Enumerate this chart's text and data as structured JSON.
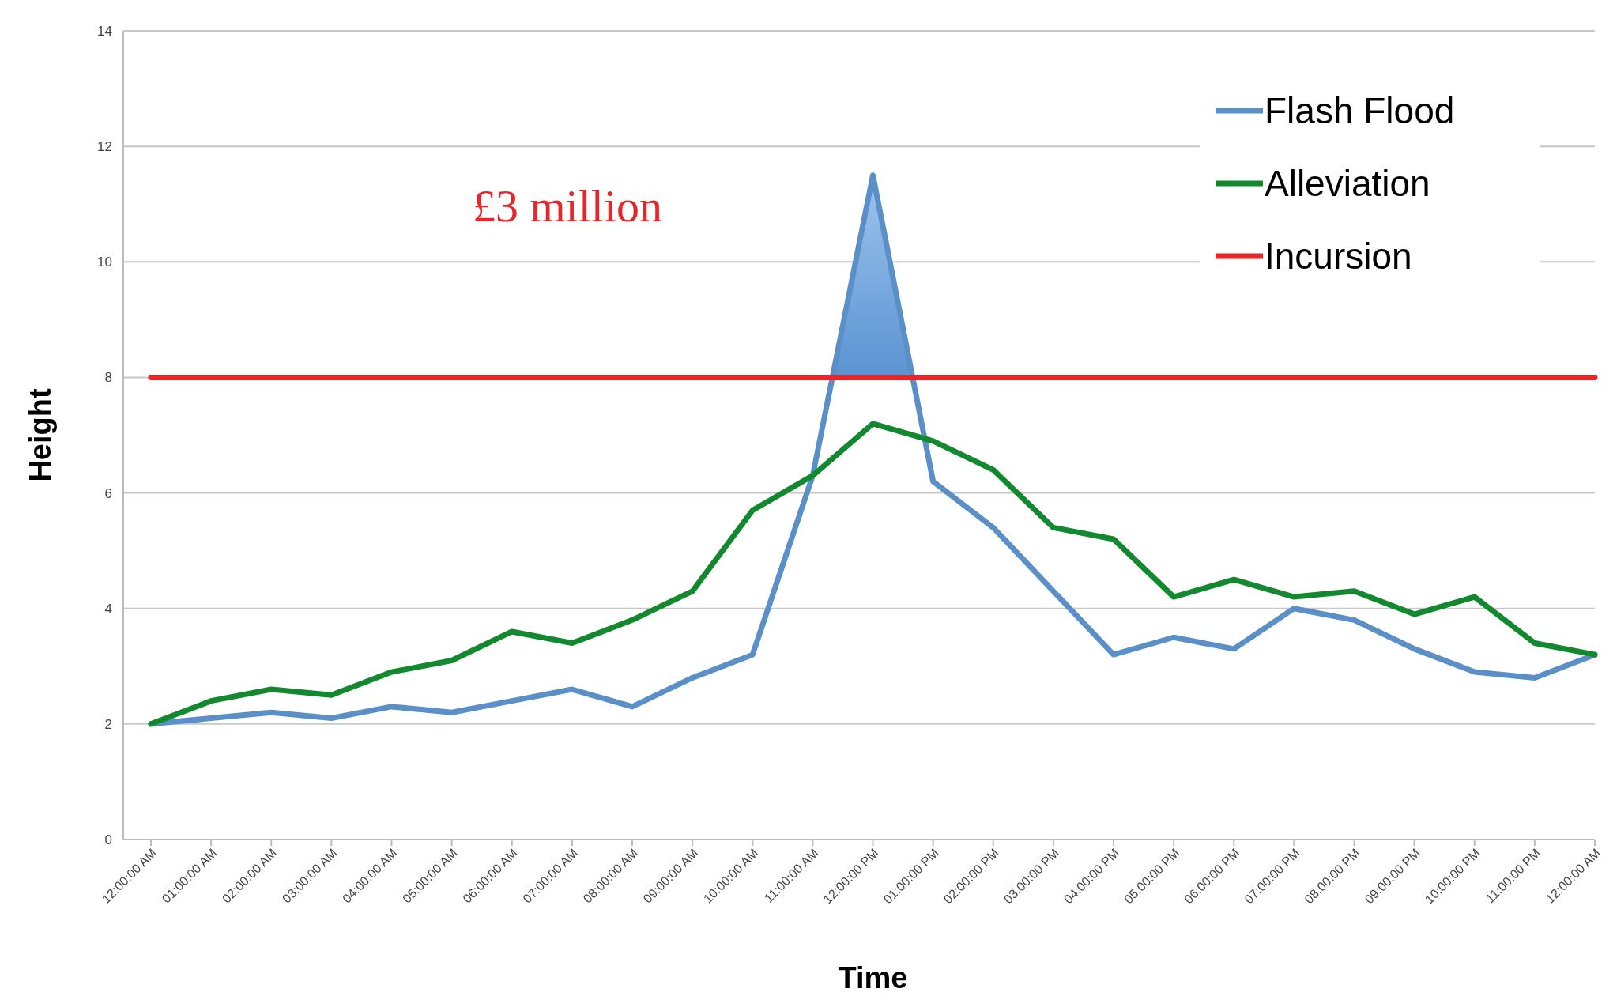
{
  "chart_data": {
    "type": "line",
    "xlabel": "Time",
    "ylabel": "Height",
    "categories": [
      "12:00:00 AM",
      "01:00:00 AM",
      "02:00:00 AM",
      "03:00:00 AM",
      "04:00:00 AM",
      "05:00:00 AM",
      "06:00:00 AM",
      "07:00:00 AM",
      "08:00:00 AM",
      "09:00:00 AM",
      "10:00:00 AM",
      "11:00:00 AM",
      "12:00:00 PM",
      "01:00:00 PM",
      "02:00:00 PM",
      "03:00:00 PM",
      "04:00:00 PM",
      "05:00:00 PM",
      "06:00:00 PM",
      "07:00:00 PM",
      "08:00:00 PM",
      "09:00:00 PM",
      "10:00:00 PM",
      "11:00:00 PM",
      "12:00:00 AM"
    ],
    "series": [
      {
        "name": "Flash Flood",
        "color": "#5b8fc7",
        "values": [
          2.0,
          2.1,
          2.2,
          2.1,
          2.3,
          2.2,
          2.4,
          2.6,
          2.3,
          2.8,
          3.2,
          6.3,
          11.5,
          6.2,
          5.4,
          4.3,
          3.2,
          3.5,
          3.3,
          4.0,
          3.8,
          3.3,
          2.9,
          2.8,
          3.2
        ],
        "lower": [
          null,
          null,
          null,
          null,
          null,
          null,
          null,
          null,
          null,
          null,
          null,
          8,
          8,
          8,
          null,
          null,
          null,
          null,
          null,
          null,
          null,
          null,
          null,
          null,
          null
        ],
        "upper": [
          null,
          null,
          null,
          null,
          null,
          null,
          null,
          null,
          null,
          null,
          null,
          6.3,
          11.5,
          6.2,
          null,
          null,
          null,
          null,
          null,
          null,
          null,
          null,
          null,
          null,
          null
        ]
      },
      {
        "name": "Alleviation",
        "color": "#12882f",
        "values": [
          2.0,
          2.4,
          2.6,
          2.5,
          2.9,
          3.1,
          3.6,
          3.4,
          3.8,
          4.3,
          5.7,
          6.3,
          7.2,
          6.9,
          6.4,
          5.4,
          5.2,
          4.2,
          4.5,
          4.2,
          4.3,
          3.9,
          4.2,
          3.4,
          3.2
        ]
      },
      {
        "name": "Incursion",
        "color": "#e8262a",
        "values": [
          8,
          8,
          8,
          8,
          8,
          8,
          8,
          8,
          8,
          8,
          8,
          8,
          8,
          8,
          8,
          8,
          8,
          8,
          8,
          8,
          8,
          8,
          8,
          8,
          8
        ]
      }
    ],
    "ylim": [
      0,
      14
    ],
    "yticks": [
      0,
      2,
      4,
      6,
      8,
      10,
      12,
      14
    ],
    "grid": "y",
    "legend": "top right",
    "marker": "none",
    "line_style": "solid",
    "annotations": [
      "£3 million"
    ]
  }
}
